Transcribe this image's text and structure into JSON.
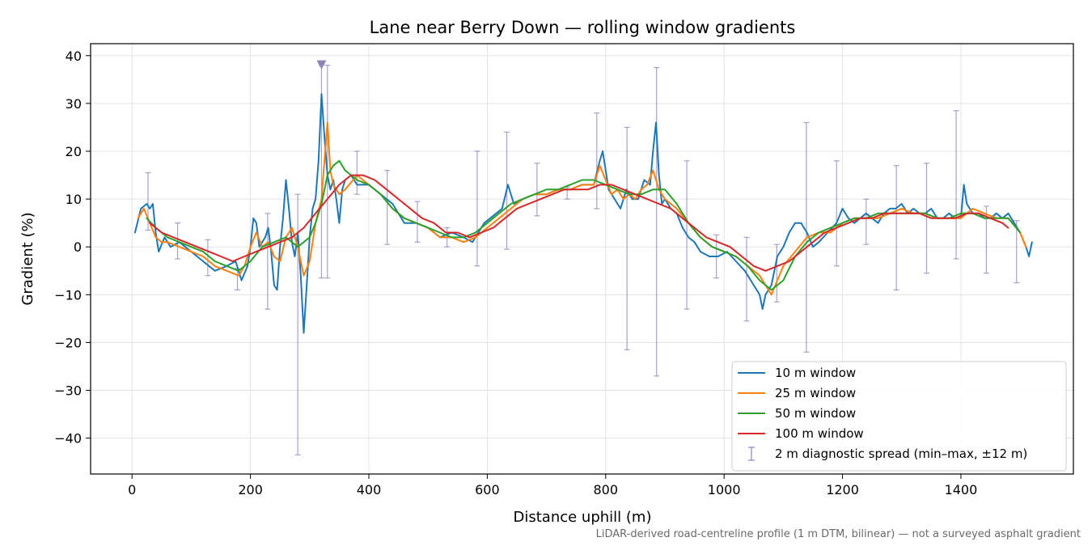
{
  "chart_data": {
    "type": "line",
    "title": "Lane near Berry Down — rolling window gradients",
    "xlabel": "Distance uphill (m)",
    "ylabel": "Gradient (%)",
    "caption": "LiDAR-derived road-centreline profile (1 m DTM, bilinear) — not a surveyed asphalt gradient",
    "xlim": [
      -70,
      1590
    ],
    "ylim": [
      -47.5,
      42.5
    ],
    "xticks": [
      0,
      200,
      400,
      600,
      800,
      1000,
      1200,
      1400
    ],
    "yticks": [
      40,
      30,
      20,
      10,
      0,
      -10,
      -20,
      -30,
      -40
    ],
    "grid": true,
    "legend_position": "lower-right",
    "series": [
      {
        "name": "10 m window",
        "color": "#1f77b4",
        "x": [
          5,
          15,
          25,
          30,
          35,
          40,
          45,
          55,
          65,
          80,
          100,
          120,
          140,
          160,
          175,
          185,
          195,
          200,
          205,
          210,
          215,
          225,
          230,
          235,
          240,
          245,
          250,
          255,
          260,
          265,
          270,
          275,
          280,
          285,
          290,
          295,
          300,
          305,
          310,
          315,
          320,
          325,
          330,
          335,
          340,
          345,
          350,
          355,
          360,
          370,
          380,
          400,
          420,
          440,
          460,
          480,
          500,
          520,
          540,
          560,
          575,
          585,
          595,
          605,
          615,
          625,
          635,
          645,
          660,
          680,
          700,
          720,
          740,
          760,
          780,
          790,
          795,
          800,
          805,
          815,
          825,
          835,
          845,
          855,
          865,
          875,
          880,
          885,
          890,
          895,
          900,
          910,
          920,
          930,
          940,
          950,
          960,
          975,
          990,
          1005,
          1020,
          1035,
          1050,
          1060,
          1065,
          1070,
          1075,
          1080,
          1090,
          1100,
          1110,
          1120,
          1130,
          1140,
          1150,
          1160,
          1175,
          1190,
          1200,
          1210,
          1220,
          1230,
          1240,
          1250,
          1260,
          1270,
          1280,
          1290,
          1300,
          1310,
          1320,
          1330,
          1340,
          1350,
          1360,
          1370,
          1380,
          1390,
          1400,
          1405,
          1410,
          1415,
          1420,
          1430,
          1440,
          1450,
          1460,
          1470,
          1480,
          1490,
          1500,
          1510,
          1515,
          1520
        ],
        "y": [
          3,
          8,
          9,
          8,
          9,
          3,
          -1,
          2,
          0,
          1,
          -1,
          -3,
          -5,
          -4,
          -3,
          -7,
          -4,
          0,
          6,
          5,
          0,
          2,
          4,
          -1,
          -8,
          -9,
          0,
          6,
          14,
          8,
          1,
          -2,
          3,
          -6,
          -18,
          -8,
          2,
          8,
          10,
          18,
          32,
          23,
          15,
          12,
          14,
          10,
          5,
          12,
          14,
          15,
          13,
          13,
          11,
          9,
          5,
          5,
          4,
          2,
          3,
          2,
          1,
          3,
          5,
          6,
          7,
          8,
          13,
          9,
          10,
          11,
          11,
          12,
          12,
          13,
          13,
          18,
          20,
          16,
          12,
          10,
          8,
          12,
          10,
          10,
          14,
          13,
          20,
          26,
          15,
          9,
          10,
          8,
          7,
          4,
          2,
          1,
          -1,
          -2,
          -2,
          -1,
          -3,
          -5,
          -8,
          -10,
          -13,
          -10,
          -9,
          -8,
          -2,
          0,
          3,
          5,
          5,
          3,
          0,
          1,
          3,
          5,
          8,
          6,
          5,
          6,
          7,
          6,
          5,
          7,
          8,
          8,
          9,
          7,
          8,
          7,
          7,
          8,
          6,
          6,
          7,
          6,
          6,
          13,
          9,
          8,
          7,
          7,
          6,
          6,
          7,
          6,
          7,
          5,
          3,
          0,
          -2,
          1
        ]
      },
      {
        "name": "25 m window",
        "color": "#ff7f0e",
        "x": [
          10,
          20,
          30,
          40,
          50,
          60,
          80,
          100,
          120,
          140,
          160,
          180,
          190,
          200,
          210,
          220,
          230,
          240,
          250,
          260,
          270,
          280,
          290,
          300,
          310,
          320,
          325,
          330,
          335,
          340,
          350,
          360,
          380,
          400,
          420,
          440,
          460,
          480,
          500,
          520,
          540,
          560,
          580,
          600,
          620,
          640,
          660,
          680,
          700,
          720,
          740,
          760,
          780,
          790,
          800,
          810,
          820,
          830,
          840,
          850,
          860,
          870,
          880,
          890,
          900,
          920,
          940,
          960,
          980,
          1000,
          1020,
          1040,
          1060,
          1070,
          1080,
          1090,
          1100,
          1120,
          1140,
          1160,
          1180,
          1200,
          1220,
          1240,
          1260,
          1280,
          1300,
          1320,
          1340,
          1360,
          1380,
          1400,
          1420,
          1440,
          1460,
          1480,
          1500,
          1510
        ],
        "y": [
          6,
          8,
          5,
          2,
          1,
          1,
          0,
          -1,
          -2,
          -4,
          -5,
          -6,
          -4,
          0,
          3,
          0,
          1,
          -2,
          -3,
          2,
          4,
          0,
          -6,
          -3,
          5,
          10,
          18,
          26,
          16,
          13,
          11,
          12,
          15,
          13,
          11,
          8,
          6,
          5,
          4,
          2,
          2,
          1,
          2,
          4,
          6,
          8,
          10,
          11,
          11,
          12,
          12,
          13,
          13,
          17,
          14,
          11,
          12,
          10,
          11,
          10,
          12,
          13,
          16,
          12,
          10,
          8,
          5,
          2,
          0,
          -1,
          -2,
          -4,
          -6,
          -8,
          -10,
          -7,
          -4,
          -1,
          2,
          3,
          3,
          5,
          6,
          6,
          6,
          7,
          8,
          7,
          7,
          6,
          6,
          6,
          8,
          7,
          6,
          6,
          3,
          0
        ]
      },
      {
        "name": "50 m window",
        "color": "#2ca02c",
        "x": [
          25,
          40,
          60,
          80,
          100,
          120,
          140,
          160,
          180,
          200,
          220,
          240,
          260,
          280,
          300,
          310,
          320,
          330,
          340,
          350,
          360,
          380,
          400,
          420,
          440,
          460,
          480,
          500,
          520,
          540,
          560,
          580,
          600,
          620,
          640,
          660,
          680,
          700,
          720,
          740,
          760,
          780,
          800,
          820,
          840,
          860,
          880,
          900,
          920,
          940,
          960,
          980,
          1000,
          1020,
          1040,
          1060,
          1080,
          1100,
          1120,
          1140,
          1160,
          1180,
          1200,
          1220,
          1240,
          1260,
          1280,
          1300,
          1320,
          1340,
          1360,
          1380,
          1400,
          1420,
          1440,
          1460,
          1480,
          1500
        ],
        "y": [
          6,
          4,
          2,
          1,
          0,
          -1,
          -3,
          -4,
          -5,
          -3,
          0,
          1,
          2,
          0,
          2,
          5,
          9,
          15,
          17,
          18,
          16,
          14,
          13,
          11,
          8,
          6,
          5,
          4,
          3,
          2,
          2,
          3,
          5,
          7,
          9,
          10,
          11,
          12,
          12,
          13,
          14,
          14,
          13,
          12,
          11,
          11,
          12,
          12,
          9,
          5,
          2,
          0,
          -1,
          -2,
          -4,
          -7,
          -9,
          -7,
          -2,
          1,
          3,
          4,
          5,
          6,
          6,
          7,
          7,
          7,
          7,
          7,
          6,
          6,
          7,
          7,
          6,
          6,
          6,
          3
        ]
      },
      {
        "name": "100 m window",
        "color": "#d62728",
        "x": [
          30,
          50,
          70,
          90,
          110,
          130,
          150,
          170,
          190,
          210,
          230,
          250,
          270,
          290,
          310,
          330,
          350,
          370,
          390,
          410,
          430,
          450,
          470,
          490,
          510,
          530,
          550,
          570,
          590,
          610,
          630,
          650,
          670,
          690,
          710,
          730,
          750,
          770,
          790,
          810,
          830,
          850,
          870,
          890,
          910,
          930,
          950,
          970,
          990,
          1010,
          1030,
          1050,
          1070,
          1090,
          1110,
          1130,
          1150,
          1170,
          1190,
          1210,
          1230,
          1250,
          1270,
          1290,
          1310,
          1330,
          1350,
          1370,
          1390,
          1410,
          1430,
          1450,
          1470,
          1480
        ],
        "y": [
          5,
          3,
          2,
          1,
          0,
          -1,
          -2,
          -3,
          -2,
          -1,
          0,
          1,
          2,
          4,
          7,
          10,
          13,
          15,
          15,
          14,
          12,
          10,
          8,
          6,
          5,
          3,
          3,
          2,
          3,
          4,
          6,
          8,
          9,
          10,
          11,
          12,
          12,
          12,
          13,
          13,
          12,
          11,
          10,
          9,
          8,
          6,
          4,
          2,
          1,
          0,
          -2,
          -4,
          -5,
          -4,
          -3,
          -1,
          1,
          3,
          4,
          5,
          6,
          6,
          7,
          7,
          7,
          7,
          6,
          6,
          6,
          7,
          7,
          6,
          5,
          4
        ]
      }
    ],
    "diagnostic": {
      "name": "2 m diagnostic spread (min–max, ±12 m)",
      "color": "#8e82b8",
      "x": [
        27,
        77,
        128,
        178,
        229,
        280,
        320,
        330,
        380,
        431,
        482,
        532,
        583,
        633,
        684,
        735,
        785,
        836,
        886,
        937,
        987,
        1038,
        1089,
        1139,
        1190,
        1240,
        1291,
        1342,
        1392,
        1443,
        1494
      ],
      "min": [
        3.5,
        -2.5,
        -6,
        -9,
        -13,
        -43.5,
        -6.5,
        -6.5,
        11,
        0.5,
        1,
        0,
        -4,
        -0.5,
        6.5,
        10,
        8,
        -21.5,
        -27,
        -13,
        -6.5,
        -15.5,
        -11.5,
        -22,
        -4,
        0.5,
        -9,
        -5.5,
        -2.5,
        -5.5,
        -7.5
      ],
      "max": [
        15.5,
        5,
        1.5,
        -4.5,
        7,
        11,
        38,
        38,
        20,
        16,
        9.5,
        4,
        20,
        24,
        17.5,
        12.5,
        28,
        25,
        37.5,
        18,
        2.5,
        2,
        0.5,
        26,
        18,
        10,
        17,
        17.5,
        28.5,
        8.5,
        5.5
      ]
    },
    "marker": {
      "x": 320,
      "y": 38,
      "shape": "triangle-down"
    }
  }
}
